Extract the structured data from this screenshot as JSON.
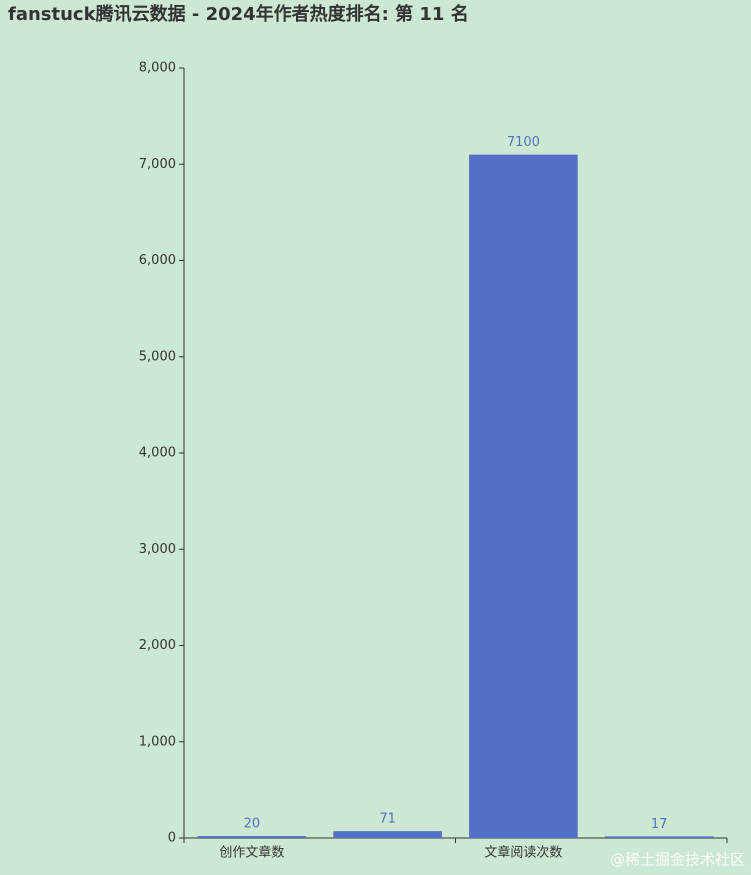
{
  "chart_data": {
    "type": "bar",
    "title": "fanstuck腾讯云数据 - 2024年作者热度排名: 第 11 名",
    "categories": [
      "创作文章数",
      null,
      "文章阅读次数",
      null
    ],
    "values": [
      20,
      71,
      7100,
      17
    ],
    "color": "#5470c6",
    "ylim": [
      0,
      8000
    ],
    "yticks": [
      0,
      {
        "value": 1000,
        "label": "1,000"
      },
      {
        "value": 2000,
        "label": "2,000"
      },
      {
        "value": 3000,
        "label": "3,000"
      },
      {
        "value": 4000,
        "label": "4,000"
      },
      {
        "value": 5000,
        "label": "5,000"
      },
      {
        "value": 6000,
        "label": "6,000"
      },
      {
        "value": 7000,
        "label": "7,000"
      },
      {
        "value": 8000,
        "label": "8,000"
      }
    ],
    "grid": false,
    "watermark": "@稀土掘金技术社区"
  }
}
